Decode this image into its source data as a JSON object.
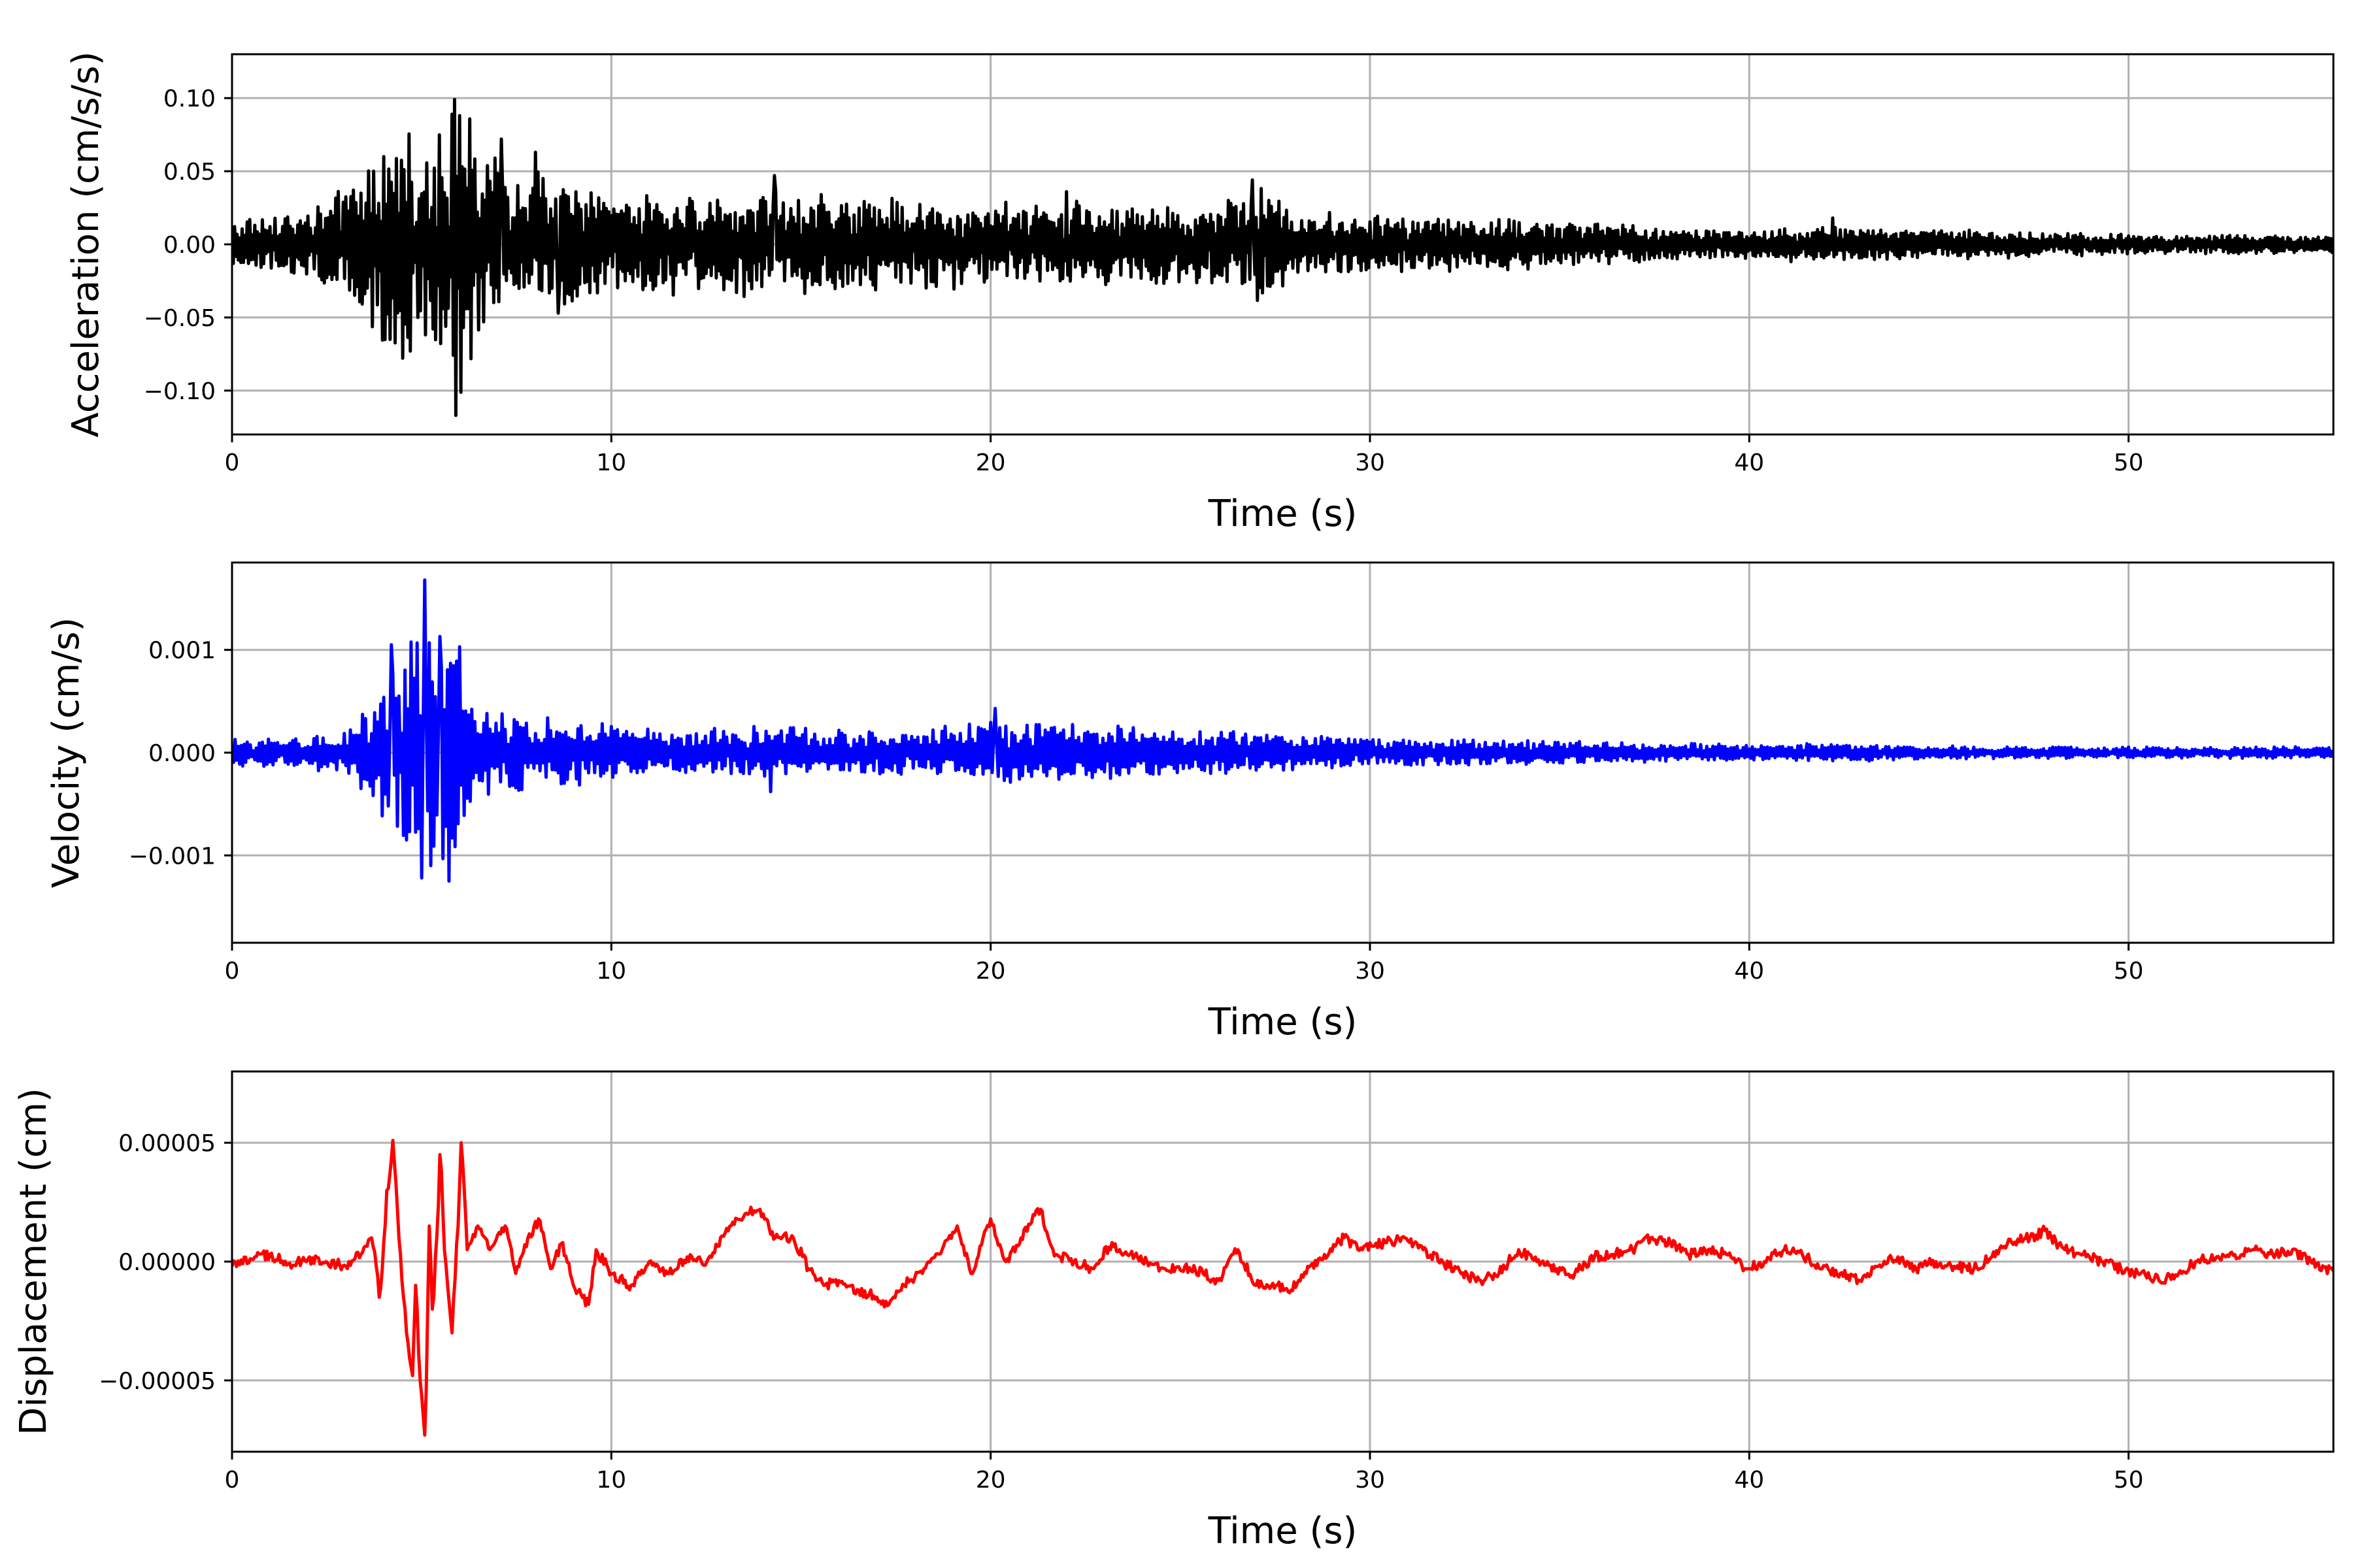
{
  "chart_data": [
    {
      "type": "line",
      "xlabel": "Time (s)",
      "ylabel": "Acceleration (cm/s/s)",
      "xlim": [
        0,
        55.4
      ],
      "ylim": [
        -0.13,
        0.13
      ],
      "xticks": [
        0,
        10,
        20,
        30,
        40,
        50
      ],
      "xtick_labels": [
        "0",
        "10",
        "20",
        "30",
        "40",
        "50"
      ],
      "yticks": [
        -0.1,
        -0.05,
        0.0,
        0.05,
        0.1
      ],
      "ytick_labels": [
        "−0.10",
        "−0.05",
        "0.00",
        "0.05",
        "0.10"
      ],
      "grid": true,
      "color": "#000000",
      "series": [
        {
          "kind": "oscillating",
          "envelope": [
            [
              0,
              0.015
            ],
            [
              1,
              0.02
            ],
            [
              2,
              0.02
            ],
            [
              3,
              0.035
            ],
            [
              4,
              0.06
            ],
            [
              4.5,
              0.07
            ],
            [
              5,
              0.06
            ],
            [
              5.5,
              0.085
            ],
            [
              6,
              0.1
            ],
            [
              6.5,
              0.06
            ],
            [
              7,
              0.05
            ],
            [
              8,
              0.05
            ],
            [
              9,
              0.04
            ],
            [
              10,
              0.032
            ],
            [
              12,
              0.03
            ],
            [
              14,
              0.034
            ],
            [
              16,
              0.032
            ],
            [
              18,
              0.028
            ],
            [
              20,
              0.026
            ],
            [
              22,
              0.028
            ],
            [
              24,
              0.025
            ],
            [
              26,
              0.028
            ],
            [
              27,
              0.038
            ],
            [
              28,
              0.022
            ],
            [
              30,
              0.018
            ],
            [
              32,
              0.017
            ],
            [
              35,
              0.015
            ],
            [
              38,
              0.011
            ],
            [
              40,
              0.009
            ],
            [
              42,
              0.012
            ],
            [
              45,
              0.009
            ],
            [
              48,
              0.008
            ],
            [
              50,
              0.006
            ],
            [
              52,
              0.006
            ],
            [
              55.4,
              0.006
            ]
          ],
          "peaks": [
            [
              5.9,
              -0.117
            ],
            [
              5.8,
              0.089
            ],
            [
              6.0,
              0.088
            ],
            [
              4.7,
              -0.073
            ],
            [
              4.0,
              0.06
            ],
            [
              7.1,
              0.072
            ],
            [
              8.0,
              0.063
            ],
            [
              8.6,
              -0.047
            ],
            [
              14.3,
              0.047
            ],
            [
              22.0,
              0.036
            ],
            [
              26.9,
              -0.043
            ],
            [
              26.9,
              0.044
            ],
            [
              42.2,
              0.018
            ]
          ],
          "points_per_second": 30
        }
      ]
    },
    {
      "type": "line",
      "xlabel": "Time (s)",
      "ylabel": "Velocity (cm/s)",
      "xlim": [
        0,
        55.4
      ],
      "ylim": [
        -0.00185,
        0.00185
      ],
      "xticks": [
        0,
        10,
        20,
        30,
        40,
        50
      ],
      "xtick_labels": [
        "0",
        "10",
        "20",
        "30",
        "40",
        "50"
      ],
      "yticks": [
        -0.001,
        0.0,
        0.001
      ],
      "ytick_labels": [
        "−0.001",
        "0.000",
        "0.001"
      ],
      "grid": true,
      "color": "#0000ff",
      "series": [
        {
          "kind": "oscillating",
          "envelope": [
            [
              0,
              0.00012
            ],
            [
              1,
              0.00015
            ],
            [
              2,
              0.00015
            ],
            [
              3,
              0.0002
            ],
            [
              3.5,
              0.00035
            ],
            [
              4,
              0.0007
            ],
            [
              4.5,
              0.0009
            ],
            [
              5,
              0.0012
            ],
            [
              5.5,
              0.0011
            ],
            [
              6,
              0.0009
            ],
            [
              6.5,
              0.00045
            ],
            [
              7,
              0.00035
            ],
            [
              8,
              0.00035
            ],
            [
              9,
              0.0003
            ],
            [
              10,
              0.00025
            ],
            [
              12,
              0.0002
            ],
            [
              14,
              0.00025
            ],
            [
              16,
              0.0002
            ],
            [
              18,
              0.0002
            ],
            [
              20,
              0.0003
            ],
            [
              21,
              0.00028
            ],
            [
              23,
              0.00025
            ],
            [
              25,
              0.0002
            ],
            [
              27,
              0.00022
            ],
            [
              28,
              0.00015
            ],
            [
              30,
              0.00014
            ],
            [
              35,
              0.0001
            ],
            [
              40,
              7e-05
            ],
            [
              42,
              9e-05
            ],
            [
              45,
              6e-05
            ],
            [
              50,
              5e-05
            ],
            [
              55.4,
              5e-05
            ]
          ],
          "peaks": [
            [
              5.1,
              0.00168
            ],
            [
              5.0,
              -0.00122
            ],
            [
              5.7,
              -0.00125
            ],
            [
              5.5,
              0.00113
            ],
            [
              4.2,
              0.00105
            ],
            [
              6.0,
              0.00103
            ],
            [
              4.6,
              -0.00085
            ],
            [
              3.4,
              -0.00035
            ],
            [
              14.2,
              -0.00038
            ],
            [
              20.1,
              0.00043
            ]
          ],
          "points_per_second": 25
        }
      ]
    },
    {
      "type": "line",
      "xlabel": "Time (s)",
      "ylabel": "Displacement (cm)",
      "xlim": [
        0,
        55.4
      ],
      "ylim": [
        -8e-05,
        8e-05
      ],
      "xticks": [
        0,
        10,
        20,
        30,
        40,
        50
      ],
      "xtick_labels": [
        "0",
        "10",
        "20",
        "30",
        "40",
        "50"
      ],
      "yticks": [
        -5e-05,
        0.0,
        5e-05
      ],
      "ytick_labels": [
        "−0.00005",
        "0.00000",
        "0.00005"
      ],
      "grid": true,
      "color": "#ff0000",
      "series": [
        {
          "kind": "keypoints",
          "points": [
            [
              0,
              -2e-06
            ],
            [
              0.5,
              1e-06
            ],
            [
              1,
              3e-06
            ],
            [
              1.5,
              -1e-06
            ],
            [
              2,
              1e-06
            ],
            [
              2.5,
              0.0
            ],
            [
              3,
              -2e-06
            ],
            [
              3.4,
              3e-06
            ],
            [
              3.7,
              1e-05
            ],
            [
              3.9,
              -1.5e-05
            ],
            [
              4.1,
              3e-05
            ],
            [
              4.25,
              5.1e-05
            ],
            [
              4.4,
              1e-05
            ],
            [
              4.6,
              -3e-05
            ],
            [
              4.75,
              -4.8e-05
            ],
            [
              4.85,
              -1e-05
            ],
            [
              4.95,
              -5e-05
            ],
            [
              5.1,
              -7.3e-05
            ],
            [
              5.2,
              1.5e-05
            ],
            [
              5.3,
              -2e-05
            ],
            [
              5.5,
              4.5e-05
            ],
            [
              5.6,
              5e-06
            ],
            [
              5.8,
              -3e-05
            ],
            [
              5.95,
              1.5e-05
            ],
            [
              6.05,
              5e-05
            ],
            [
              6.2,
              5e-06
            ],
            [
              6.5,
              1.5e-05
            ],
            [
              6.8,
              5e-06
            ],
            [
              7.2,
              1.5e-05
            ],
            [
              7.5,
              -5e-06
            ],
            [
              7.8,
              1e-05
            ],
            [
              8.1,
              1.8e-05
            ],
            [
              8.4,
              -3e-06
            ],
            [
              8.7,
              8e-06
            ],
            [
              9.0,
              -1e-05
            ],
            [
              9.4,
              -1.8e-05
            ],
            [
              9.6,
              5e-06
            ],
            [
              10.0,
              -5e-06
            ],
            [
              10.5,
              -1e-05
            ],
            [
              11.0,
              0.0
            ],
            [
              11.5,
              -5e-06
            ],
            [
              12.0,
              2e-06
            ],
            [
              12.5,
              0.0
            ],
            [
              13.0,
              1.2e-05
            ],
            [
              13.5,
              2e-05
            ],
            [
              13.9,
              2.2e-05
            ],
            [
              14.3,
              1e-05
            ],
            [
              14.8,
              1e-05
            ],
            [
              15.2,
              -3e-06
            ],
            [
              15.6,
              -1e-05
            ],
            [
              16.0,
              -8e-06
            ],
            [
              16.5,
              -1.2e-05
            ],
            [
              17.0,
              -1.5e-05
            ],
            [
              17.3,
              -1.8e-05
            ],
            [
              17.7,
              -1e-05
            ],
            [
              18.2,
              -5e-06
            ],
            [
              18.7,
              5e-06
            ],
            [
              19.1,
              1.5e-05
            ],
            [
              19.5,
              -5e-06
            ],
            [
              20.0,
              1.8e-05
            ],
            [
              20.4,
              0.0
            ],
            [
              20.8,
              1e-05
            ],
            [
              21.3,
              2.2e-05
            ],
            [
              21.7,
              3e-06
            ],
            [
              22.2,
              0.0
            ],
            [
              22.7,
              -3e-06
            ],
            [
              23.2,
              8e-06
            ],
            [
              23.6,
              3e-06
            ],
            [
              24.1,
              0.0
            ],
            [
              24.6,
              -3e-06
            ],
            [
              25.1,
              -2e-06
            ],
            [
              25.6,
              -5e-06
            ],
            [
              26.0,
              -8e-06
            ],
            [
              26.5,
              5e-06
            ],
            [
              27.0,
              -1e-05
            ],
            [
              27.5,
              -1e-05
            ],
            [
              27.9,
              -1.2e-05
            ],
            [
              28.3,
              -5e-06
            ],
            [
              28.8,
              3e-06
            ],
            [
              29.3,
              1e-05
            ],
            [
              29.8,
              5e-06
            ],
            [
              30.4,
              8e-06
            ],
            [
              30.9,
              1e-05
            ],
            [
              31.4,
              5e-06
            ],
            [
              31.9,
              0.0
            ],
            [
              32.4,
              -5e-06
            ],
            [
              32.9,
              -8e-06
            ],
            [
              33.4,
              -5e-06
            ],
            [
              33.9,
              5e-06
            ],
            [
              34.4,
              0.0
            ],
            [
              34.9,
              -3e-06
            ],
            [
              35.4,
              -5e-06
            ],
            [
              35.9,
              2e-06
            ],
            [
              36.4,
              3e-06
            ],
            [
              36.9,
              5e-06
            ],
            [
              37.4,
              1e-05
            ],
            [
              37.9,
              8e-06
            ],
            [
              38.4,
              3e-06
            ],
            [
              38.9,
              5e-06
            ],
            [
              39.4,
              3e-06
            ],
            [
              39.9,
              -3e-06
            ],
            [
              40.4,
              0.0
            ],
            [
              40.9,
              5e-06
            ],
            [
              41.4,
              3e-06
            ],
            [
              41.9,
              -3e-06
            ],
            [
              42.4,
              -5e-06
            ],
            [
              42.9,
              -8e-06
            ],
            [
              43.4,
              -2e-06
            ],
            [
              43.9,
              2e-06
            ],
            [
              44.4,
              -3e-06
            ],
            [
              44.9,
              0.0
            ],
            [
              45.4,
              -2e-06
            ],
            [
              45.9,
              -3e-06
            ],
            [
              46.4,
              2e-06
            ],
            [
              46.9,
              8e-06
            ],
            [
              47.4,
              1e-05
            ],
            [
              47.8,
              1.3e-05
            ],
            [
              48.3,
              5e-06
            ],
            [
              48.8,
              3e-06
            ],
            [
              49.3,
              0.0
            ],
            [
              49.8,
              -3e-06
            ],
            [
              50.3,
              -5e-06
            ],
            [
              50.8,
              -8e-06
            ],
            [
              51.3,
              -5e-06
            ],
            [
              51.8,
              0.0
            ],
            [
              52.3,
              2e-06
            ],
            [
              52.8,
              3e-06
            ],
            [
              53.3,
              5e-06
            ],
            [
              53.8,
              3e-06
            ],
            [
              54.3,
              5e-06
            ],
            [
              54.8,
              0.0
            ],
            [
              55.4,
              -4e-06
            ]
          ],
          "noise": 2.2e-06
        }
      ]
    }
  ]
}
